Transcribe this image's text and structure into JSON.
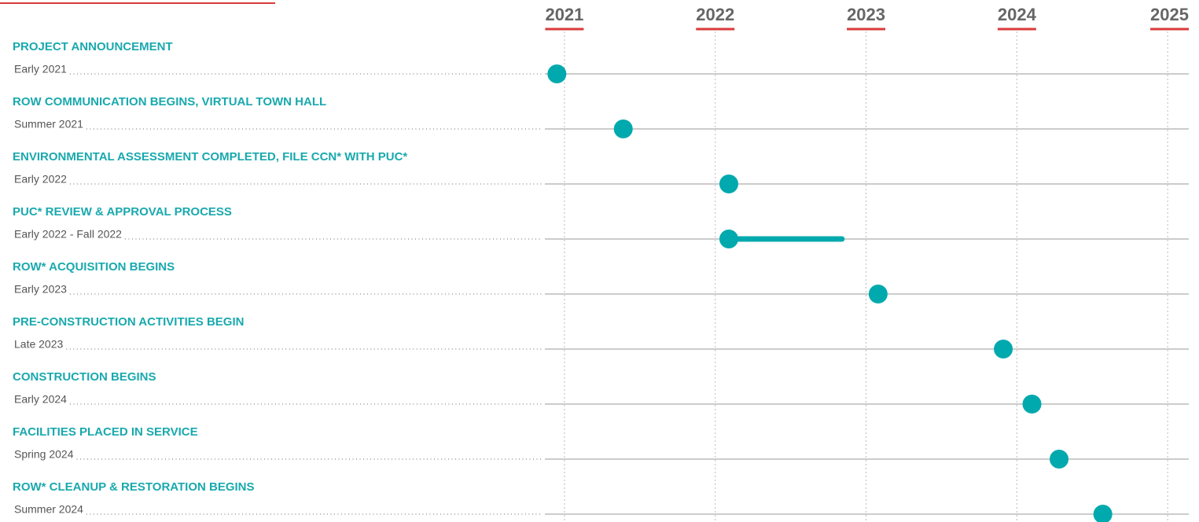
{
  "chart_data": {
    "type": "timeline",
    "xlim": [
      2020.87,
      2025.14
    ],
    "xticks": [
      2021,
      2022,
      2023,
      2024,
      2025
    ],
    "color": "#00a9ad",
    "accent_color": "#d93a3a",
    "grid": true,
    "events": [
      {
        "title": "PROJECT ANNOUNCEMENT",
        "date": "Early 2021",
        "start": 2020.95
      },
      {
        "title": "ROW COMMUNICATION BEGINS, VIRTUAL TOWN HALL",
        "date": "Summer 2021",
        "start": 2021.39
      },
      {
        "title": "ENVIRONMENTAL ASSESSMENT COMPLETED, FILE CCN* WITH PUC*",
        "date": "Early 2022",
        "start": 2022.09
      },
      {
        "title": "PUC* REVIEW & APPROVAL PROCESS",
        "date": "Early 2022 - Fall 2022",
        "start": 2022.09,
        "end": 2022.84
      },
      {
        "title": "ROW* ACQUISITION BEGINS",
        "date": "Early 2023",
        "start": 2023.08
      },
      {
        "title": "PRE-CONSTRUCTION ACTIVITIES BEGIN",
        "date": "Late 2023",
        "start": 2023.91
      },
      {
        "title": "CONSTRUCTION BEGINS",
        "date": "Early 2024",
        "start": 2024.1
      },
      {
        "title": "FACILITIES PLACED IN SERVICE",
        "date": "Spring 2024",
        "start": 2024.28
      },
      {
        "title": "ROW* CLEANUP & RESTORATION BEGINS",
        "date": "Summer 2024",
        "start": 2024.57
      }
    ]
  }
}
